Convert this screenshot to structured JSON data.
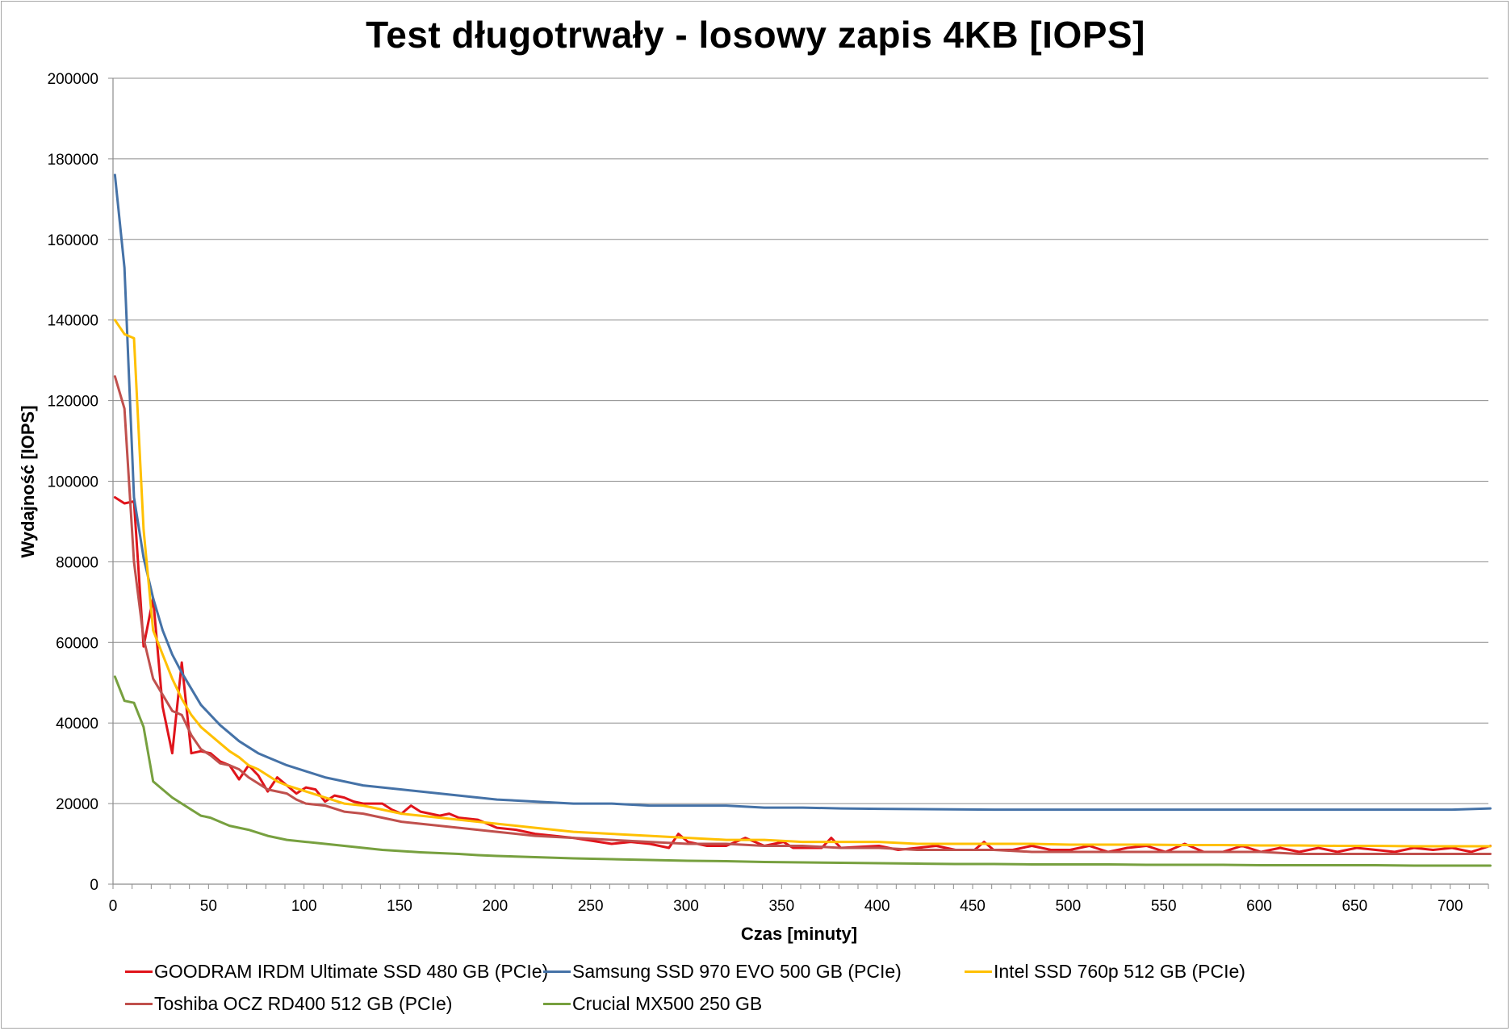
{
  "chart_data": {
    "type": "line",
    "title": "Test długotrwały - losowy zapis 4KB [IOPS]",
    "xlabel": "Czas [minuty]",
    "ylabel": "Wydajność [IOPS]",
    "xlim": [
      0,
      720
    ],
    "ylim": [
      0,
      200000
    ],
    "xticks": [
      "0",
      "50",
      "100",
      "150",
      "200",
      "250",
      "300",
      "350",
      "400",
      "450",
      "500",
      "550",
      "600",
      "650",
      "700"
    ],
    "yticks": [
      "0",
      "20000",
      "40000",
      "60000",
      "80000",
      "100000",
      "120000",
      "140000",
      "160000",
      "180000",
      "200000"
    ],
    "grid": "horizontal",
    "legend_position": "bottom",
    "series": [
      {
        "name": "GOODRAM IRDM Ultimate SSD 480 GB (PCIe)",
        "color": "#e0141b",
        "points": [
          [
            1,
            96000
          ],
          [
            6,
            94500
          ],
          [
            11,
            95000
          ],
          [
            16,
            59000
          ],
          [
            21,
            71000
          ],
          [
            26,
            44000
          ],
          [
            31,
            32500
          ],
          [
            36,
            55000
          ],
          [
            41,
            32500
          ],
          [
            46,
            33000
          ],
          [
            51,
            32500
          ],
          [
            56,
            30500
          ],
          [
            61,
            29500
          ],
          [
            66,
            26000
          ],
          [
            71,
            29500
          ],
          [
            76,
            27000
          ],
          [
            81,
            23000
          ],
          [
            86,
            26500
          ],
          [
            91,
            24500
          ],
          [
            96,
            22500
          ],
          [
            101,
            24000
          ],
          [
            106,
            23500
          ],
          [
            111,
            20500
          ],
          [
            116,
            22000
          ],
          [
            121,
            21500
          ],
          [
            126,
            20500
          ],
          [
            131,
            20000
          ],
          [
            141,
            20000
          ],
          [
            146,
            18500
          ],
          [
            151,
            17500
          ],
          [
            156,
            19500
          ],
          [
            161,
            18000
          ],
          [
            166,
            17500
          ],
          [
            171,
            17000
          ],
          [
            176,
            17500
          ],
          [
            181,
            16500
          ],
          [
            191,
            16000
          ],
          [
            201,
            14000
          ],
          [
            211,
            13500
          ],
          [
            221,
            12500
          ],
          [
            241,
            11500
          ],
          [
            261,
            10000
          ],
          [
            271,
            10500
          ],
          [
            281,
            10000
          ],
          [
            291,
            9000
          ],
          [
            296,
            12500
          ],
          [
            301,
            10500
          ],
          [
            311,
            9500
          ],
          [
            321,
            9500
          ],
          [
            331,
            11500
          ],
          [
            341,
            9500
          ],
          [
            351,
            10500
          ],
          [
            356,
            9000
          ],
          [
            371,
            9000
          ],
          [
            376,
            11500
          ],
          [
            381,
            9000
          ],
          [
            401,
            9500
          ],
          [
            411,
            8500
          ],
          [
            421,
            9000
          ],
          [
            431,
            9500
          ],
          [
            441,
            8500
          ],
          [
            451,
            8500
          ],
          [
            456,
            10500
          ],
          [
            461,
            8500
          ],
          [
            471,
            8500
          ],
          [
            481,
            9500
          ],
          [
            491,
            8500
          ],
          [
            501,
            8500
          ],
          [
            511,
            9500
          ],
          [
            521,
            8000
          ],
          [
            531,
            9000
          ],
          [
            541,
            9500
          ],
          [
            551,
            8000
          ],
          [
            561,
            10000
          ],
          [
            571,
            8000
          ],
          [
            581,
            8000
          ],
          [
            591,
            9500
          ],
          [
            601,
            8000
          ],
          [
            611,
            9000
          ],
          [
            621,
            8000
          ],
          [
            631,
            9000
          ],
          [
            641,
            8000
          ],
          [
            651,
            9000
          ],
          [
            661,
            8500
          ],
          [
            671,
            8000
          ],
          [
            681,
            9000
          ],
          [
            691,
            8500
          ],
          [
            701,
            9000
          ],
          [
            711,
            8000
          ],
          [
            721,
            9500
          ]
        ]
      },
      {
        "name": "Samsung SSD 970 EVO 500 GB (PCIe)",
        "color": "#4572a7",
        "points": [
          [
            1,
            176000
          ],
          [
            6,
            153000
          ],
          [
            11,
            96000
          ],
          [
            16,
            81000
          ],
          [
            21,
            71000
          ],
          [
            26,
            63000
          ],
          [
            31,
            57000
          ],
          [
            36,
            52500
          ],
          [
            41,
            48500
          ],
          [
            46,
            44500
          ],
          [
            51,
            42000
          ],
          [
            56,
            39500
          ],
          [
            61,
            37500
          ],
          [
            66,
            35500
          ],
          [
            71,
            34000
          ],
          [
            76,
            32500
          ],
          [
            81,
            31500
          ],
          [
            91,
            29500
          ],
          [
            101,
            28000
          ],
          [
            111,
            26500
          ],
          [
            121,
            25500
          ],
          [
            131,
            24500
          ],
          [
            141,
            24000
          ],
          [
            151,
            23500
          ],
          [
            161,
            23000
          ],
          [
            171,
            22500
          ],
          [
            181,
            22000
          ],
          [
            191,
            21500
          ],
          [
            201,
            21000
          ],
          [
            221,
            20500
          ],
          [
            241,
            20000
          ],
          [
            261,
            20000
          ],
          [
            281,
            19500
          ],
          [
            301,
            19500
          ],
          [
            321,
            19500
          ],
          [
            341,
            19000
          ],
          [
            361,
            19000
          ],
          [
            381,
            18800
          ],
          [
            401,
            18700
          ],
          [
            431,
            18600
          ],
          [
            461,
            18500
          ],
          [
            501,
            18500
          ],
          [
            541,
            18500
          ],
          [
            581,
            18500
          ],
          [
            601,
            18500
          ],
          [
            621,
            18500
          ],
          [
            661,
            18500
          ],
          [
            701,
            18500
          ],
          [
            721,
            18800
          ]
        ]
      },
      {
        "name": "Intel SSD 760p 512 GB (PCIe)",
        "color": "#ffc000",
        "points": [
          [
            1,
            140000
          ],
          [
            6,
            136500
          ],
          [
            11,
            135500
          ],
          [
            16,
            88000
          ],
          [
            21,
            63000
          ],
          [
            26,
            57000
          ],
          [
            31,
            51000
          ],
          [
            36,
            46000
          ],
          [
            41,
            42000
          ],
          [
            46,
            39000
          ],
          [
            51,
            37000
          ],
          [
            56,
            35000
          ],
          [
            61,
            33000
          ],
          [
            66,
            31500
          ],
          [
            71,
            29500
          ],
          [
            76,
            28500
          ],
          [
            81,
            27000
          ],
          [
            86,
            25500
          ],
          [
            91,
            24500
          ],
          [
            101,
            23000
          ],
          [
            111,
            21500
          ],
          [
            121,
            20000
          ],
          [
            131,
            19500
          ],
          [
            141,
            18500
          ],
          [
            151,
            17500
          ],
          [
            161,
            17000
          ],
          [
            171,
            16500
          ],
          [
            181,
            16000
          ],
          [
            201,
            15000
          ],
          [
            221,
            14000
          ],
          [
            241,
            13000
          ],
          [
            261,
            12500
          ],
          [
            281,
            12000
          ],
          [
            301,
            11500
          ],
          [
            321,
            11000
          ],
          [
            341,
            11000
          ],
          [
            361,
            10500
          ],
          [
            381,
            10500
          ],
          [
            401,
            10500
          ],
          [
            421,
            10000
          ],
          [
            441,
            10000
          ],
          [
            461,
            10000
          ],
          [
            481,
            10000
          ],
          [
            501,
            9800
          ],
          [
            521,
            9800
          ],
          [
            541,
            9800
          ],
          [
            561,
            9700
          ],
          [
            581,
            9700
          ],
          [
            601,
            9600
          ],
          [
            621,
            9600
          ],
          [
            641,
            9500
          ],
          [
            661,
            9500
          ],
          [
            681,
            9400
          ],
          [
            701,
            9400
          ],
          [
            721,
            9400
          ]
        ]
      },
      {
        "name": "Toshiba OCZ RD400 512 GB (PCIe)",
        "color": "#c0504d",
        "points": [
          [
            1,
            126000
          ],
          [
            6,
            118000
          ],
          [
            11,
            80000
          ],
          [
            16,
            61000
          ],
          [
            21,
            51000
          ],
          [
            26,
            47000
          ],
          [
            31,
            43000
          ],
          [
            36,
            42000
          ],
          [
            41,
            37000
          ],
          [
            46,
            33500
          ],
          [
            51,
            32000
          ],
          [
            56,
            30000
          ],
          [
            61,
            29500
          ],
          [
            66,
            28500
          ],
          [
            71,
            26500
          ],
          [
            76,
            25000
          ],
          [
            81,
            23500
          ],
          [
            91,
            22500
          ],
          [
            96,
            21000
          ],
          [
            101,
            20000
          ],
          [
            111,
            19500
          ],
          [
            121,
            18000
          ],
          [
            131,
            17500
          ],
          [
            141,
            16500
          ],
          [
            151,
            15500
          ],
          [
            161,
            15000
          ],
          [
            171,
            14500
          ],
          [
            181,
            14000
          ],
          [
            191,
            13500
          ],
          [
            201,
            13000
          ],
          [
            221,
            12000
          ],
          [
            241,
            11500
          ],
          [
            261,
            11000
          ],
          [
            281,
            10500
          ],
          [
            301,
            10000
          ],
          [
            321,
            10000
          ],
          [
            341,
            9500
          ],
          [
            361,
            9500
          ],
          [
            381,
            9000
          ],
          [
            401,
            9000
          ],
          [
            421,
            8500
          ],
          [
            441,
            8500
          ],
          [
            461,
            8500
          ],
          [
            481,
            8000
          ],
          [
            501,
            8000
          ],
          [
            521,
            8000
          ],
          [
            541,
            8000
          ],
          [
            561,
            8000
          ],
          [
            581,
            8000
          ],
          [
            601,
            8000
          ],
          [
            621,
            7500
          ],
          [
            641,
            7500
          ],
          [
            661,
            7500
          ],
          [
            681,
            7500
          ],
          [
            701,
            7500
          ],
          [
            721,
            7500
          ]
        ]
      },
      {
        "name": "Crucial MX500 250 GB",
        "color": "#77a03f",
        "points": [
          [
            1,
            51500
          ],
          [
            6,
            45500
          ],
          [
            11,
            45000
          ],
          [
            16,
            39000
          ],
          [
            21,
            25500
          ],
          [
            26,
            23500
          ],
          [
            31,
            21500
          ],
          [
            36,
            20000
          ],
          [
            41,
            18500
          ],
          [
            46,
            17000
          ],
          [
            51,
            16500
          ],
          [
            56,
            15500
          ],
          [
            61,
            14500
          ],
          [
            71,
            13500
          ],
          [
            81,
            12000
          ],
          [
            91,
            11000
          ],
          [
            101,
            10500
          ],
          [
            111,
            10000
          ],
          [
            121,
            9500
          ],
          [
            131,
            9000
          ],
          [
            141,
            8500
          ],
          [
            151,
            8200
          ],
          [
            161,
            7900
          ],
          [
            171,
            7700
          ],
          [
            181,
            7500
          ],
          [
            191,
            7200
          ],
          [
            201,
            7000
          ],
          [
            221,
            6700
          ],
          [
            241,
            6400
          ],
          [
            261,
            6200
          ],
          [
            281,
            6000
          ],
          [
            301,
            5800
          ],
          [
            321,
            5700
          ],
          [
            341,
            5500
          ],
          [
            361,
            5400
          ],
          [
            381,
            5300
          ],
          [
            401,
            5200
          ],
          [
            421,
            5100
          ],
          [
            441,
            5000
          ],
          [
            461,
            5000
          ],
          [
            481,
            4900
          ],
          [
            501,
            4900
          ],
          [
            521,
            4900
          ],
          [
            541,
            4800
          ],
          [
            561,
            4800
          ],
          [
            581,
            4800
          ],
          [
            601,
            4700
          ],
          [
            621,
            4700
          ],
          [
            641,
            4700
          ],
          [
            661,
            4700
          ],
          [
            681,
            4600
          ],
          [
            701,
            4600
          ],
          [
            721,
            4600
          ]
        ]
      }
    ]
  }
}
